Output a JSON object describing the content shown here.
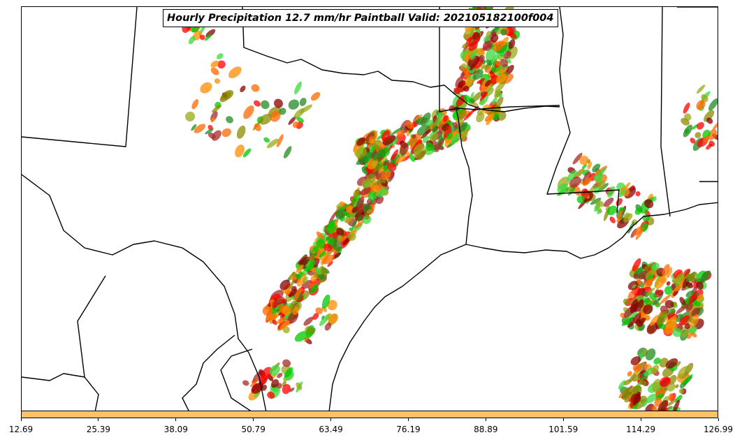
{
  "title": "Hourly Precipitation 12.7 mm/hr Paintball Valid: 202105182100f004",
  "colorbar": {
    "color": "#ffc266",
    "ticks": [
      "12.69",
      "25.39",
      "38.09",
      "50.79",
      "63.49",
      "76.19",
      "88.89",
      "101.59",
      "114.29",
      "126.99"
    ]
  },
  "member_colors": [
    "#ff0000",
    "#ff8c00",
    "#ff6a00",
    "#00c800",
    "#3cd83c",
    "#228b22",
    "#8b0000",
    "#a52a2a",
    "#8b8b00",
    "#9aa81a"
  ],
  "map": {
    "border_color": "#000000",
    "background": "#ffffff"
  }
}
